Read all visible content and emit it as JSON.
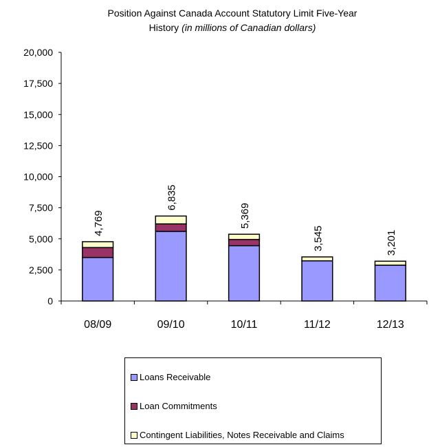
{
  "chart_data": {
    "type": "bar",
    "stacked": true,
    "title": "Position Against Canada Account Statutory Limit Five-Year",
    "title_line2_plain": "History ",
    "title_line2_italic": "(in millions of Canadian dollars)",
    "categories": [
      "08/09",
      "09/10",
      "10/11",
      "11/12",
      "12/13"
    ],
    "series": [
      {
        "name": "Loans Receivable",
        "color": "#9999ff",
        "values": [
          3500,
          5600,
          4450,
          3230,
          2880
        ]
      },
      {
        "name": "Loan Commitments",
        "color": "#993366",
        "values": [
          800,
          600,
          500,
          0,
          0
        ]
      },
      {
        "name": "Contingent Liabilities, Notes Receivable and Claims",
        "color": "#ffffcc",
        "values": [
          469,
          635,
          419,
          315,
          321
        ]
      }
    ],
    "totals": [
      "4,769",
      "6,835",
      "5,369",
      "3,545",
      "3,201"
    ],
    "ylim": [
      0,
      20000
    ],
    "yticks": [
      "0",
      "2,500",
      "5,000",
      "7,500",
      "10,000",
      "12,500",
      "15,000",
      "17,500",
      "20,000"
    ],
    "xlabel": "",
    "ylabel": "",
    "grid": false,
    "legend_position": "bottom"
  }
}
